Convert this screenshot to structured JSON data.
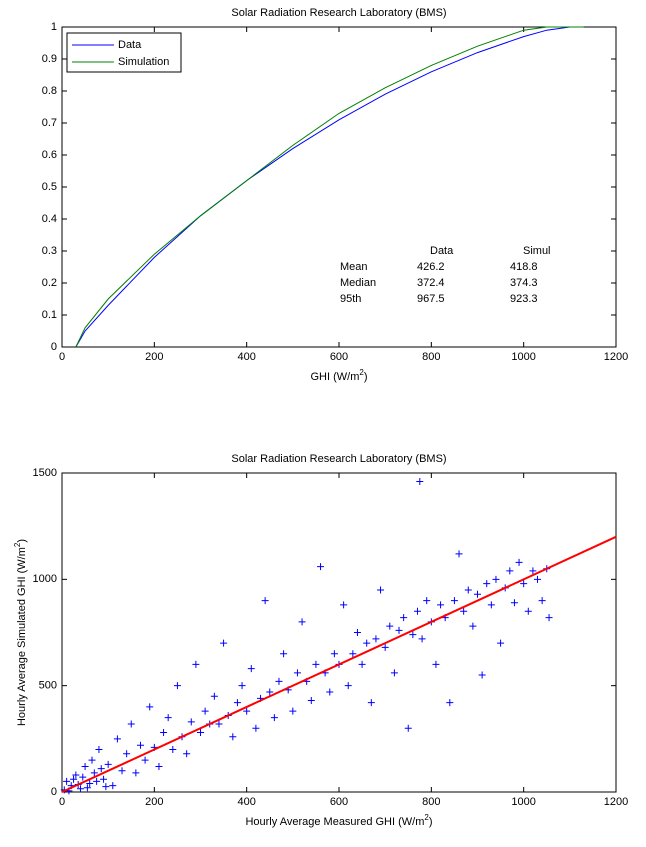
{
  "chart_data": [
    {
      "type": "line",
      "title": "Solar Radiation Research Laboratory (BMS)",
      "xlabel": [
        "GHI (W/m",
        "2",
        ")"
      ],
      "x": [
        30,
        50,
        100,
        200,
        300,
        400,
        500,
        600,
        700,
        800,
        900,
        1000,
        1050,
        1100,
        1130
      ],
      "series": [
        {
          "name": "Data",
          "color": "#0000ff",
          "values": [
            0,
            0.05,
            0.13,
            0.28,
            0.41,
            0.52,
            0.62,
            0.71,
            0.79,
            0.86,
            0.92,
            0.97,
            0.99,
            1,
            1
          ]
        },
        {
          "name": "Simulation",
          "color": "#008000",
          "values": [
            0,
            0.06,
            0.15,
            0.29,
            0.41,
            0.52,
            0.63,
            0.73,
            0.81,
            0.88,
            0.94,
            0.99,
            1,
            1,
            1
          ]
        }
      ],
      "xlim": [
        0,
        1200
      ],
      "xticks": [
        0,
        200,
        400,
        600,
        800,
        1000,
        1200
      ],
      "ylim": [
        0,
        1
      ],
      "yticks": [
        0,
        0.1,
        0.2,
        0.3,
        0.4,
        0.5,
        0.6,
        0.7,
        0.8,
        0.9,
        1
      ],
      "legend": "upper-left",
      "stats": {
        "columns": [
          "Data",
          "Simul"
        ],
        "rows": [
          {
            "label": "Mean",
            "values": [
              426.2,
              418.8
            ]
          },
          {
            "label": "Median",
            "values": [
              372.4,
              374.3
            ]
          },
          {
            "label": "95th",
            "values": [
              967.5,
              923.3
            ]
          }
        ]
      }
    },
    {
      "type": "scatter",
      "title": "Solar Radiation Research Laboratory (BMS)",
      "xlabel": [
        "Hourly Average Measured GHI (W/m",
        "2",
        ")"
      ],
      "ylabel": [
        "Hourly Average Simulated GHI (W/m",
        "2",
        ")"
      ],
      "xlim": [
        0,
        1200
      ],
      "xticks": [
        0,
        200,
        400,
        600,
        800,
        1000,
        1200
      ],
      "ylim": [
        0,
        1500
      ],
      "yticks": [
        0,
        500,
        1000,
        1500
      ],
      "series": [
        {
          "kind": "scatter",
          "marker": "+",
          "color": "#0000ff",
          "x": [
            5,
            10,
            15,
            20,
            25,
            30,
            35,
            40,
            45,
            50,
            55,
            60,
            65,
            70,
            75,
            80,
            85,
            90,
            95,
            100,
            110,
            120,
            130,
            140,
            150,
            160,
            170,
            180,
            190,
            200,
            210,
            220,
            230,
            240,
            250,
            260,
            270,
            280,
            290,
            300,
            310,
            320,
            330,
            340,
            350,
            360,
            370,
            380,
            390,
            400,
            410,
            420,
            430,
            440,
            450,
            460,
            470,
            480,
            490,
            500,
            510,
            520,
            530,
            540,
            550,
            560,
            570,
            580,
            590,
            600,
            610,
            620,
            630,
            640,
            650,
            660,
            670,
            680,
            690,
            700,
            710,
            720,
            730,
            740,
            750,
            760,
            770,
            775,
            780,
            790,
            800,
            810,
            820,
            830,
            840,
            850,
            860,
            870,
            880,
            890,
            900,
            910,
            920,
            930,
            940,
            950,
            960,
            970,
            980,
            990,
            1000,
            1010,
            1020,
            1030,
            1040,
            1050,
            1055
          ],
          "y": [
            10,
            50,
            5,
            30,
            60,
            80,
            35,
            15,
            70,
            120,
            20,
            40,
            150,
            90,
            50,
            200,
            110,
            60,
            25,
            130,
            30,
            250,
            100,
            180,
            320,
            90,
            220,
            150,
            400,
            210,
            120,
            280,
            350,
            200,
            500,
            260,
            180,
            330,
            600,
            280,
            380,
            320,
            450,
            320,
            700,
            360,
            260,
            420,
            500,
            380,
            580,
            300,
            440,
            900,
            470,
            350,
            520,
            650,
            480,
            380,
            560,
            800,
            520,
            430,
            600,
            1060,
            560,
            470,
            650,
            600,
            880,
            500,
            650,
            750,
            600,
            700,
            420,
            720,
            950,
            680,
            780,
            560,
            760,
            820,
            300,
            740,
            850,
            1460,
            720,
            900,
            800,
            600,
            880,
            820,
            420,
            900,
            1120,
            850,
            950,
            780,
            930,
            550,
            980,
            880,
            1000,
            700,
            960,
            1040,
            890,
            1080,
            980,
            850,
            1040,
            1000,
            900,
            1050,
            820
          ]
        },
        {
          "kind": "line",
          "color": "#ff0000",
          "x": [
            0,
            1200
          ],
          "y": [
            0,
            1200
          ]
        }
      ]
    }
  ]
}
